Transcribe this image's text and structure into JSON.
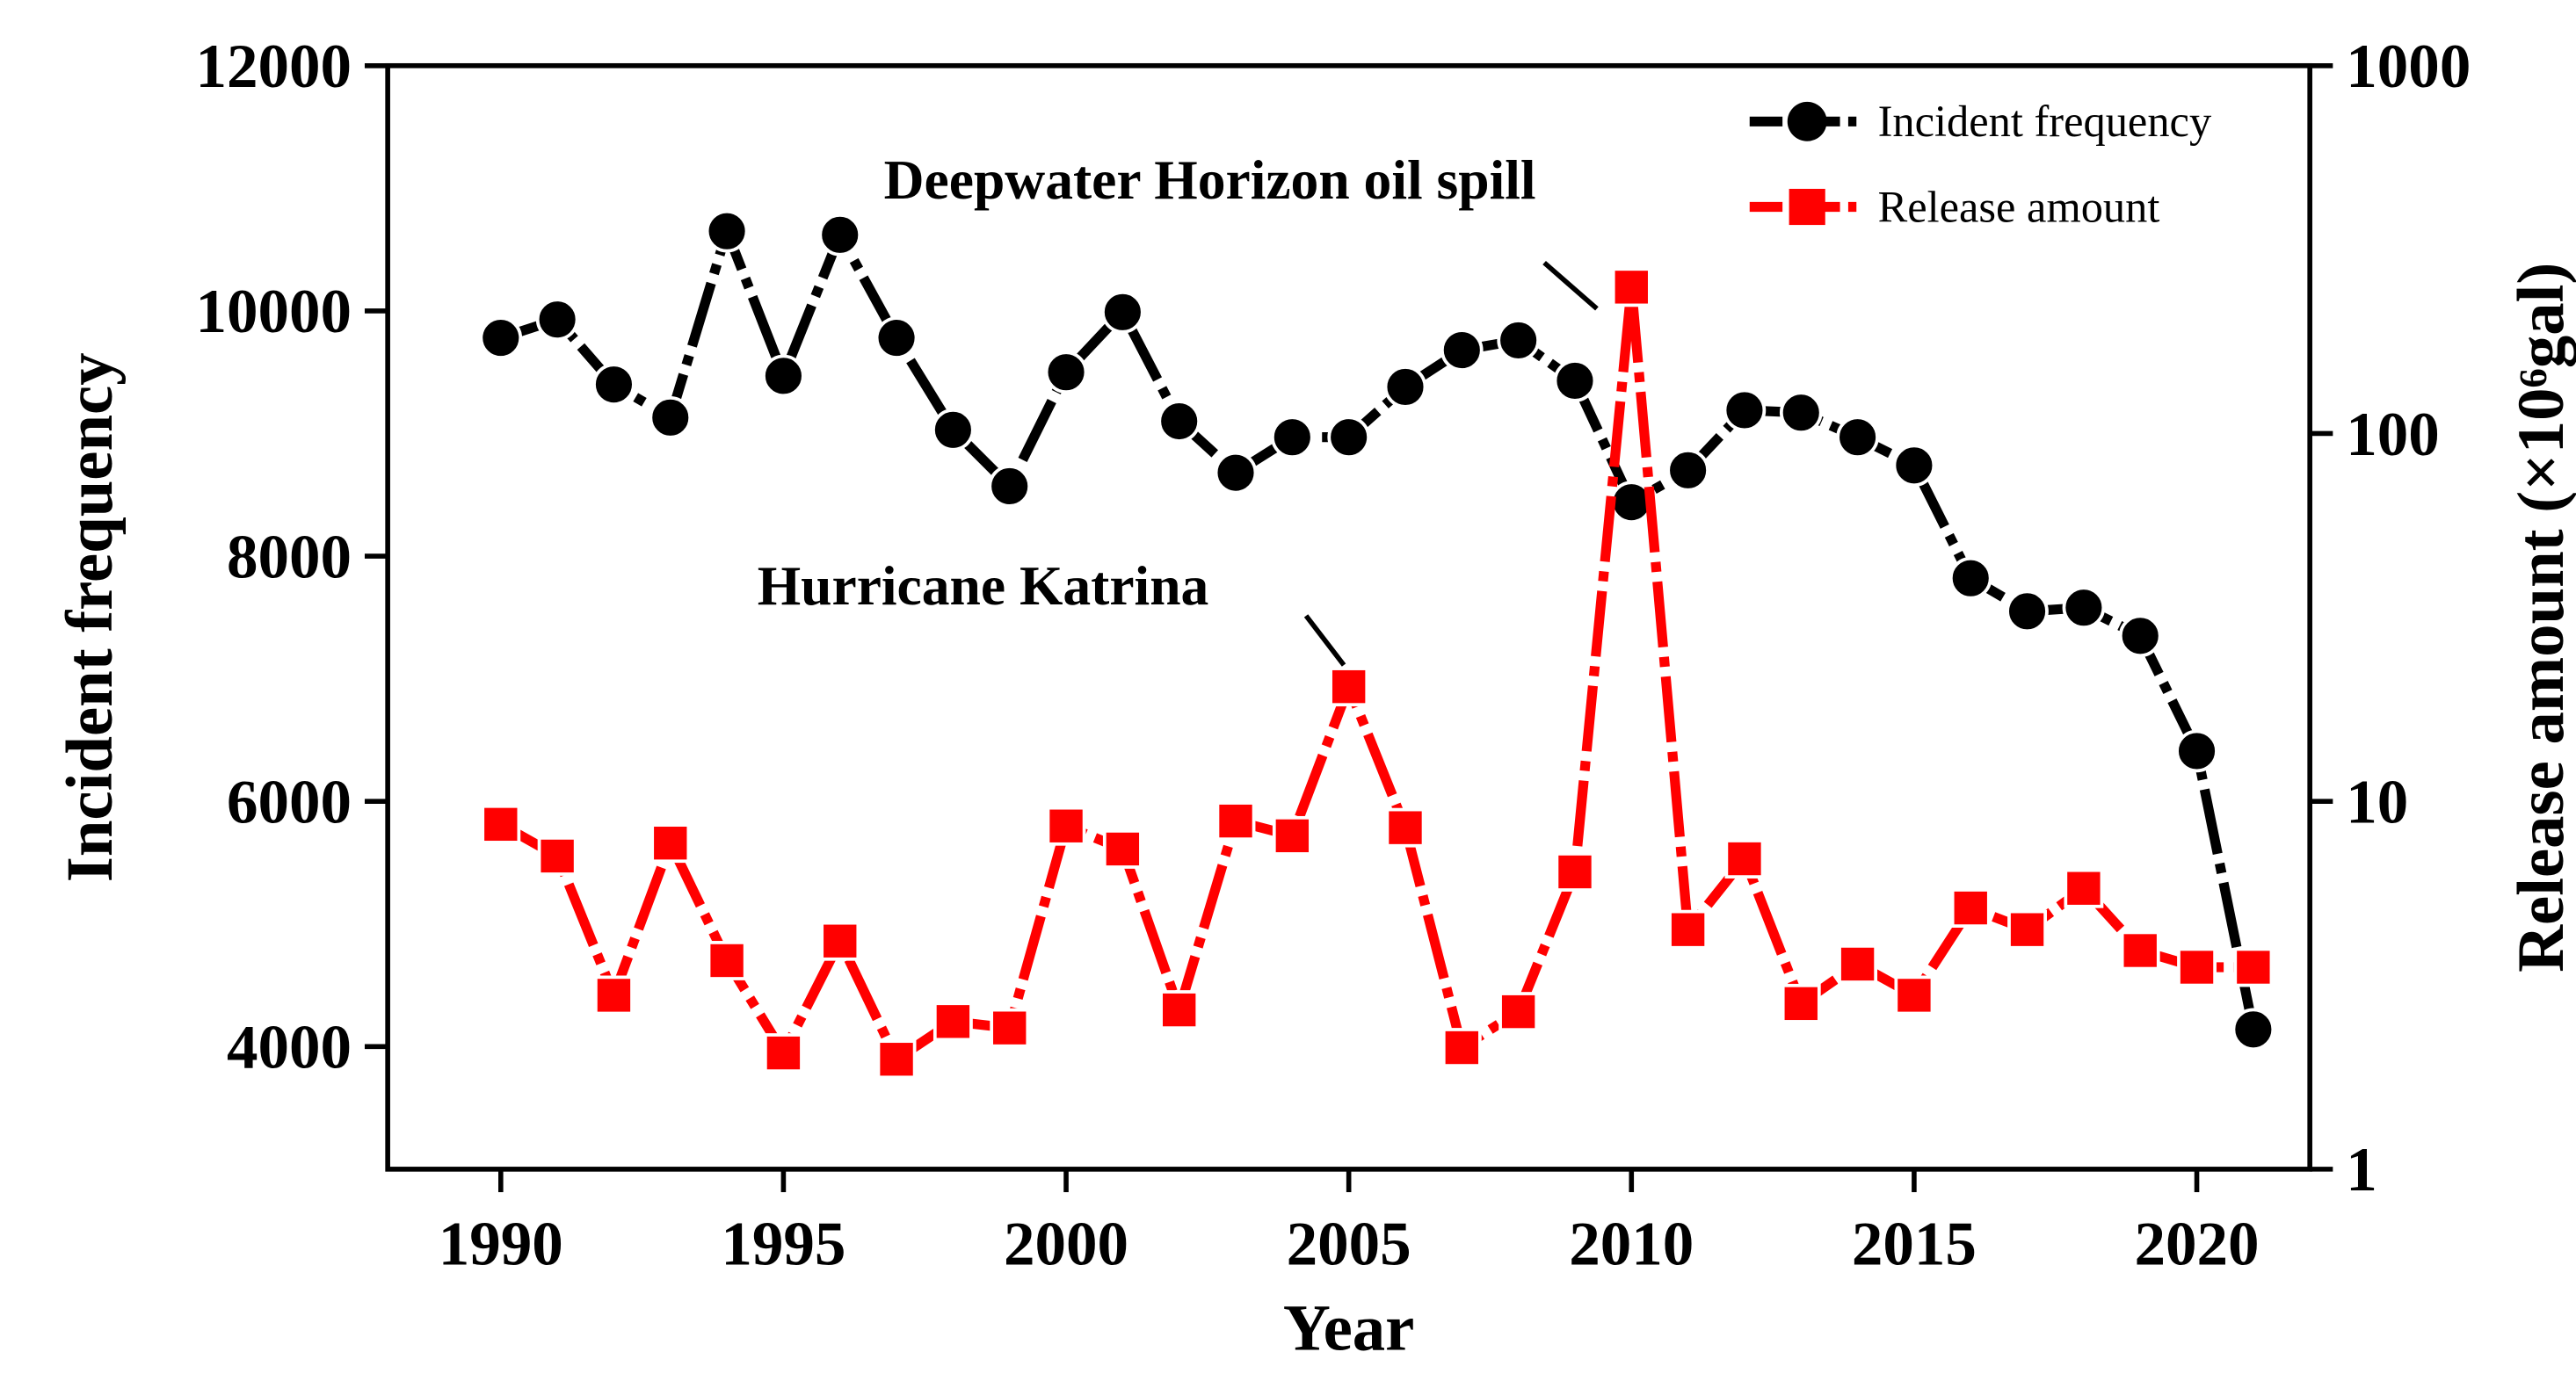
{
  "chart_data": {
    "type": "line",
    "x": [
      1990,
      1991,
      1992,
      1993,
      1994,
      1995,
      1996,
      1997,
      1998,
      1999,
      2000,
      2001,
      2002,
      2003,
      2004,
      2005,
      2006,
      2007,
      2008,
      2009,
      2010,
      2011,
      2012,
      2013,
      2014,
      2015,
      2016,
      2017,
      2018,
      2019,
      2020,
      2021
    ],
    "series": [
      {
        "name": "Incident frequency",
        "color": "#000000",
        "marker": "circle",
        "values": [
          9780,
          9930,
          9400,
          9130,
          10650,
          9470,
          10620,
          9780,
          9030,
          8570,
          9500,
          9990,
          9100,
          8680,
          8970,
          8970,
          9380,
          9680,
          9760,
          9430,
          8440,
          8700,
          9190,
          9170,
          8970,
          8740,
          7820,
          7550,
          7580,
          7350,
          6410,
          4140
        ]
      },
      {
        "name": "Release amount",
        "color": "#ff0000",
        "marker": "square",
        "axis": "y2",
        "values": [
          8.66,
          7.1,
          2.97,
          7.7,
          3.69,
          2.07,
          4.17,
          1.99,
          2.52,
          2.42,
          8.57,
          7.42,
          2.71,
          8.84,
          8.06,
          20.5,
          8.48,
          2.14,
          2.68,
          6.43,
          250,
          4.48,
          6.98,
          2.82,
          3.61,
          2.97,
          5.13,
          4.48,
          5.8,
          3.93,
          3.54,
          3.54
        ]
      }
    ],
    "xlabel": "Year",
    "ylabel": "Incident frequency",
    "y2label": "Release amount (×10⁶gal)",
    "xlim": [
      1988,
      2022
    ],
    "xticks": [
      1990,
      1995,
      2000,
      2005,
      2010,
      2015,
      2020
    ],
    "ylim": [
      3000,
      12000
    ],
    "yticks": [
      4000,
      6000,
      8000,
      10000,
      12000
    ],
    "y2lim": [
      1,
      1000
    ],
    "y2ticks": [
      1,
      10,
      100,
      1000
    ],
    "y2scale": "log",
    "legend": "upper right",
    "annotations": [
      {
        "text": "Deepwater Horizon oil spill",
        "x": 2010,
        "series": 1
      },
      {
        "text": "Hurricane Katrina",
        "x": 2005,
        "series": 1
      }
    ]
  }
}
